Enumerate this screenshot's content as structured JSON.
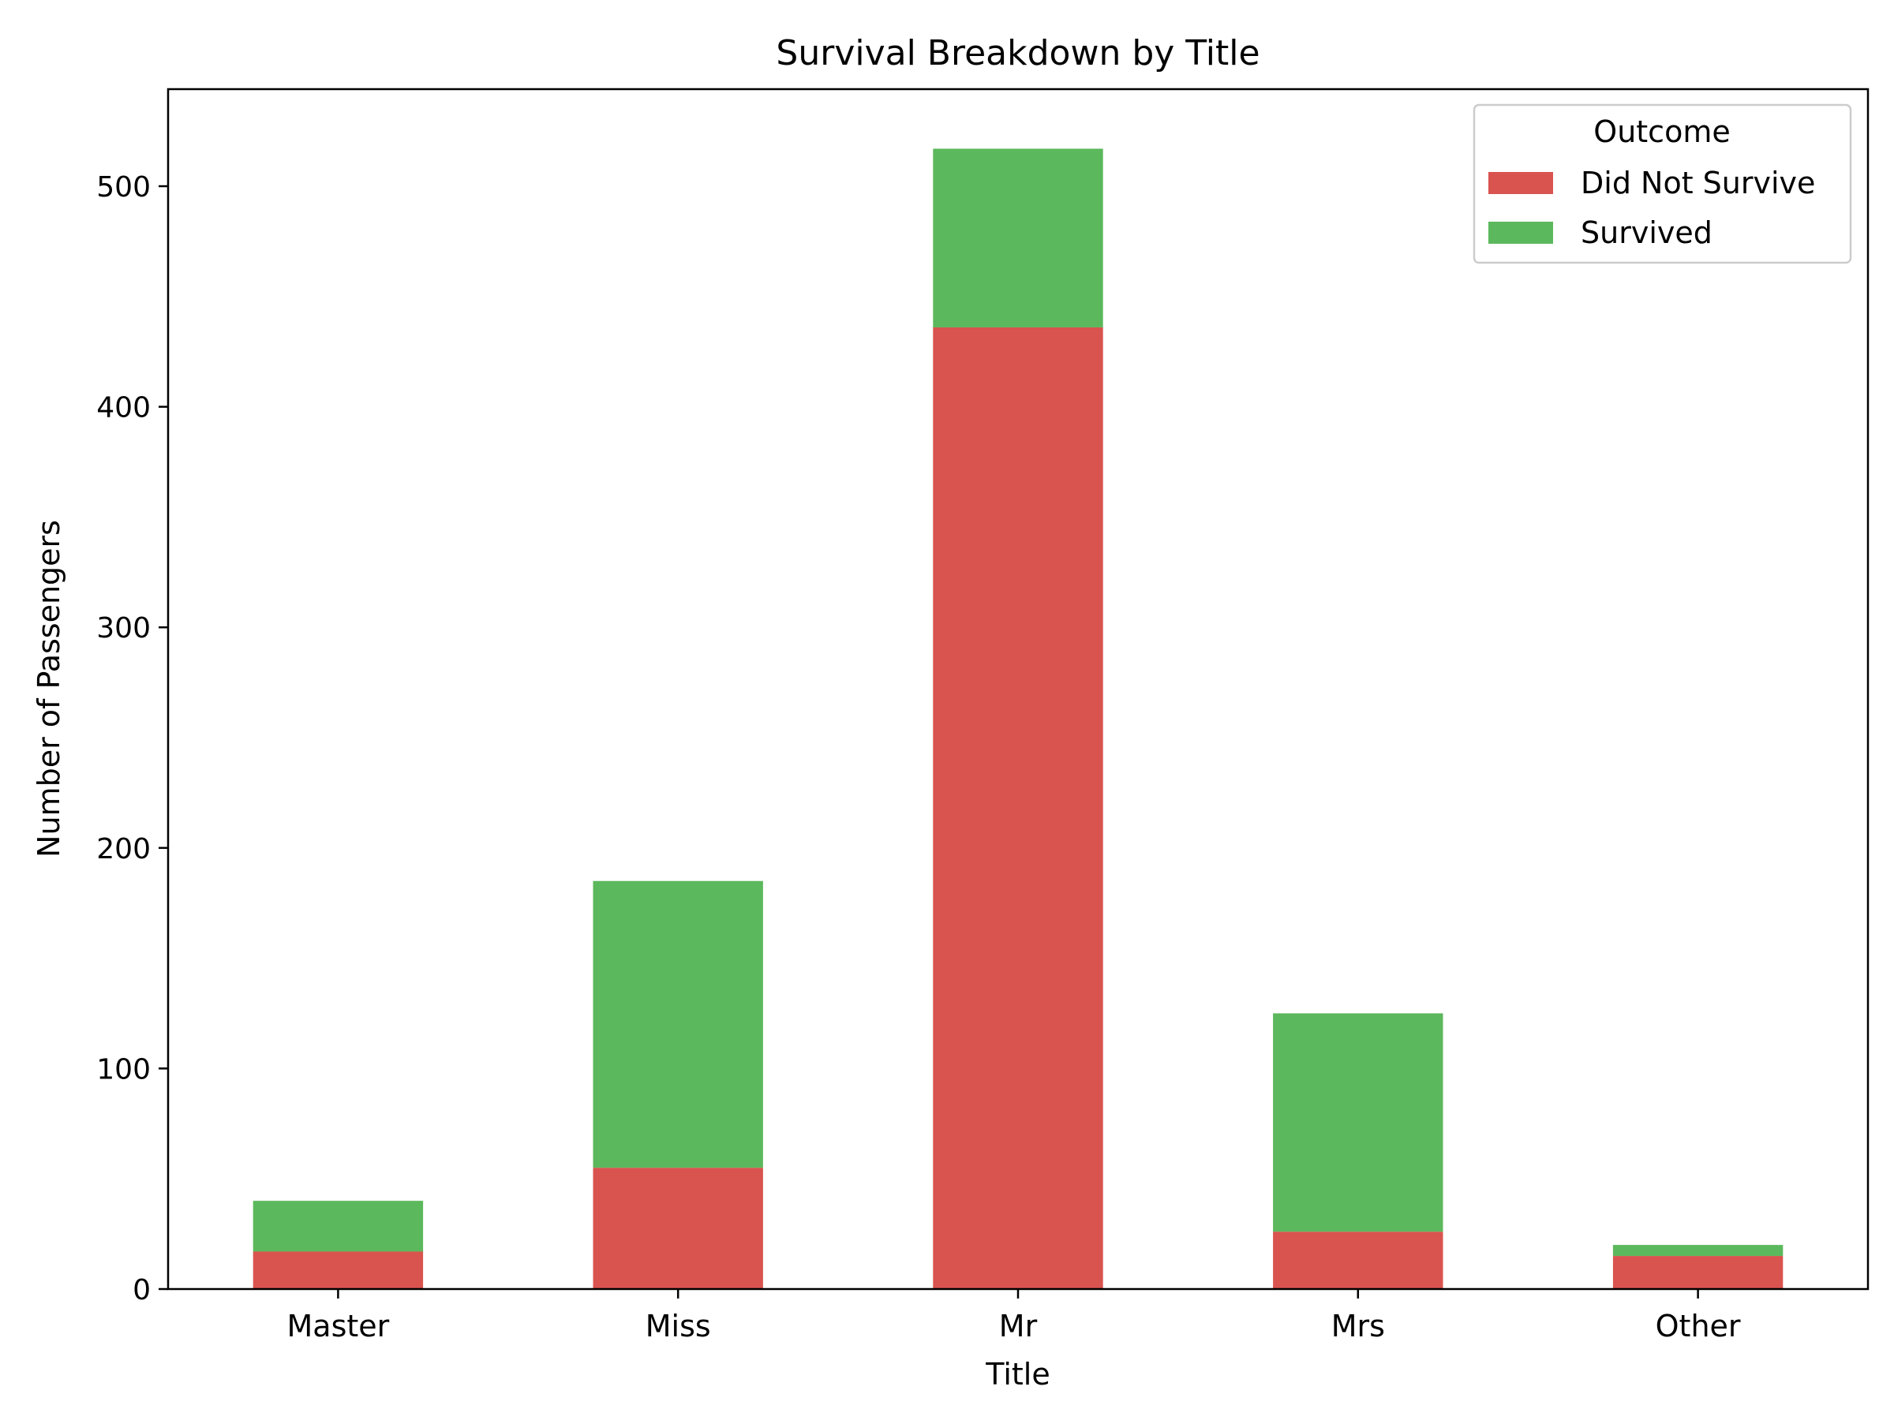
{
  "chart_data": {
    "type": "bar",
    "stacked": true,
    "title": "Survival Breakdown by Title",
    "xlabel": "Title",
    "ylabel": "Number of Passengers",
    "categories": [
      "Master",
      "Miss",
      "Mr",
      "Mrs",
      "Other"
    ],
    "series": [
      {
        "name": "Did Not Survive",
        "color": "#d9534f",
        "values": [
          17,
          55,
          436,
          26,
          15
        ]
      },
      {
        "name": "Survived",
        "color": "#5cb85c",
        "values": [
          23,
          130,
          81,
          99,
          5
        ]
      }
    ],
    "ylim": [
      0,
      544
    ],
    "yticks": [
      0,
      100,
      200,
      300,
      400,
      500
    ],
    "legend": {
      "title": "Outcome",
      "placement": "top-right"
    },
    "grid": false
  }
}
